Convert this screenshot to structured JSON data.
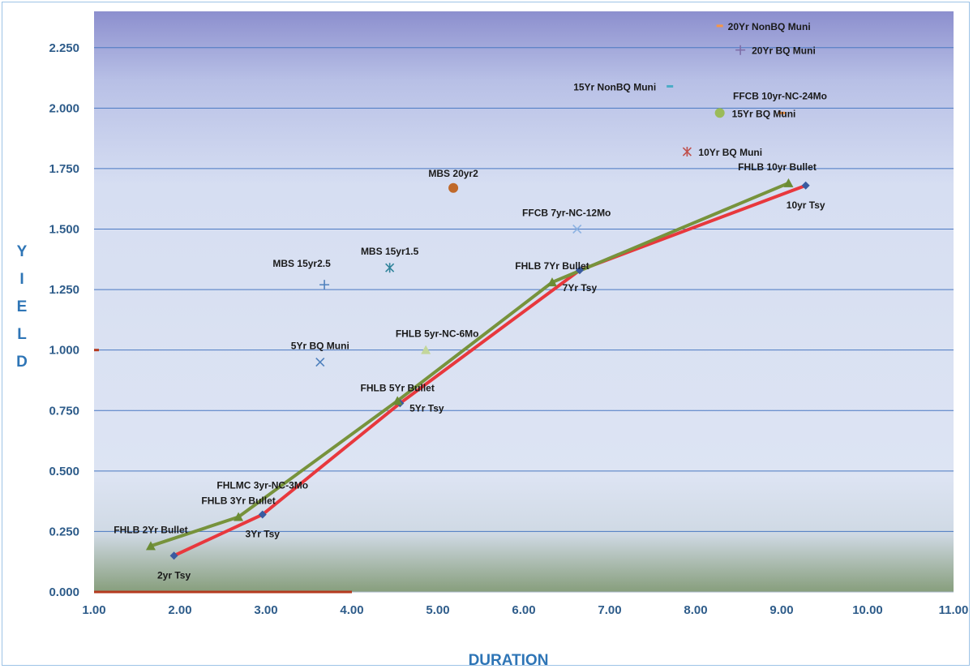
{
  "chart_data": {
    "type": "scatter",
    "xlabel": "DURATION",
    "ylabel": "YIELD",
    "xlim": [
      1,
      11
    ],
    "ylim": [
      0,
      2.35
    ],
    "x_ticks": [
      "1.00",
      "2.00",
      "3.00",
      "4.00",
      "5.00",
      "6.00",
      "7.00",
      "8.00",
      "9.00",
      "10.00",
      "11.00"
    ],
    "y_ticks": [
      "0.000",
      "0.250",
      "0.500",
      "0.750",
      "1.000",
      "1.250",
      "1.500",
      "1.750",
      "2.000",
      "2.250"
    ],
    "grid": "horizontal",
    "lines": [
      {
        "color": "#e8383d",
        "marker": "diamond",
        "marker_color": "#3a5ba0",
        "points": [
          {
            "label": "2yr Tsy",
            "x": 1.93,
            "y": 0.15
          },
          {
            "label": "3Yr Tsy",
            "x": 2.96,
            "y": 0.32
          },
          {
            "label": "5Yr Tsy",
            "x": 4.56,
            "y": 0.78
          },
          {
            "label": "7Yr Tsy",
            "x": 6.65,
            "y": 1.33
          },
          {
            "label": "10yr Tsy",
            "x": 9.28,
            "y": 1.68
          }
        ]
      },
      {
        "color": "#77933c",
        "marker": "triangle",
        "marker_color": "#6b8c34",
        "points": [
          {
            "label": "FHLB 2Yr Bullet",
            "x": 1.66,
            "y": 0.19
          },
          {
            "label": "FHLB 3Yr Bullet",
            "x": 2.68,
            "y": 0.31
          },
          {
            "label": "FHLB 5Yr Bullet",
            "x": 4.53,
            "y": 0.79
          },
          {
            "label": "FHLB 7Yr Bullet",
            "x": 6.33,
            "y": 1.28
          },
          {
            "label": "FHLB 10yr Bullet",
            "x": 9.08,
            "y": 1.69
          }
        ]
      }
    ],
    "points": [
      {
        "label": "20Yr NonBQ Muni",
        "x": 8.28,
        "y": 2.34,
        "marker": "dash",
        "color": "#f79646"
      },
      {
        "label": "20Yr BQ Muni",
        "x": 8.52,
        "y": 2.24,
        "marker": "plus",
        "color": "#7f6fa8"
      },
      {
        "label": "15Yr NonBQ Muni",
        "x": 7.7,
        "y": 2.09,
        "marker": "dash",
        "color": "#4bacc6"
      },
      {
        "label": "FFCB 10yr-NC-24Mo",
        "x": 9.0,
        "y": 1.98,
        "marker": "dash",
        "color": "#f79646"
      },
      {
        "label": "15Yr BQ Muni",
        "x": 8.28,
        "y": 1.98,
        "marker": "circle",
        "color": "#9bbb59"
      },
      {
        "label": "10Yr BQ Muni",
        "x": 7.9,
        "y": 1.82,
        "marker": "star",
        "color": "#c0504d"
      },
      {
        "label": "MBS 20yr2",
        "x": 5.18,
        "y": 1.67,
        "marker": "circle",
        "color": "#c0692a"
      },
      {
        "label": "FFCB 7yr-NC-12Mo",
        "x": 6.62,
        "y": 1.5,
        "marker": "x",
        "color": "#8db3e2"
      },
      {
        "label": "MBS 15yr1.5",
        "x": 4.44,
        "y": 1.34,
        "marker": "star",
        "color": "#31849b"
      },
      {
        "label": "MBS 15yr2.5",
        "x": 3.68,
        "y": 1.27,
        "marker": "plus",
        "color": "#4f81bd"
      },
      {
        "label": "FHLB 5yr-NC-6Mo",
        "x": 4.86,
        "y": 1.0,
        "marker": "triangle",
        "color": "#c3d69b"
      },
      {
        "label": "5Yr BQ Muni",
        "x": 3.63,
        "y": 0.95,
        "marker": "x",
        "color": "#4f81bd"
      },
      {
        "label": "FHLMC 3yr-NC-3Mo",
        "x": 2.96,
        "y": 0.32,
        "marker": "none",
        "color": "#1a1a1a"
      }
    ]
  }
}
